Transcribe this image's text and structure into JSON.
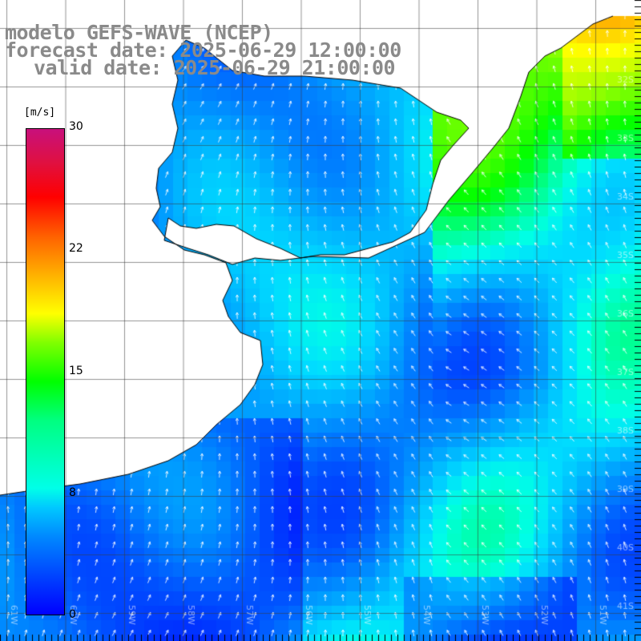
{
  "header": {
    "line1": "modelo GEFS-WAVE (NCEP)",
    "line2": "forecast date: 2025-06-29 12:00:00",
    "line3": "valid date: 2025-06-29 21:00:00"
  },
  "colorbar": {
    "unit": "[m/s]",
    "ticks": [
      "30",
      "22",
      "15",
      "8",
      "0"
    ],
    "colors": [
      "#0000ff",
      "#00c8ff",
      "#00ff00",
      "#ffff00",
      "#ff0000",
      "#c8107c"
    ]
  },
  "map": {
    "lat_labels": [
      "32S",
      "33S",
      "34S",
      "35S",
      "36S",
      "37S",
      "38S",
      "39S",
      "40S",
      "41S"
    ],
    "lon_labels": [
      "61W",
      "60W",
      "59W",
      "58W",
      "57W",
      "56W",
      "55W",
      "54W",
      "53W",
      "52W",
      "51W"
    ]
  }
}
